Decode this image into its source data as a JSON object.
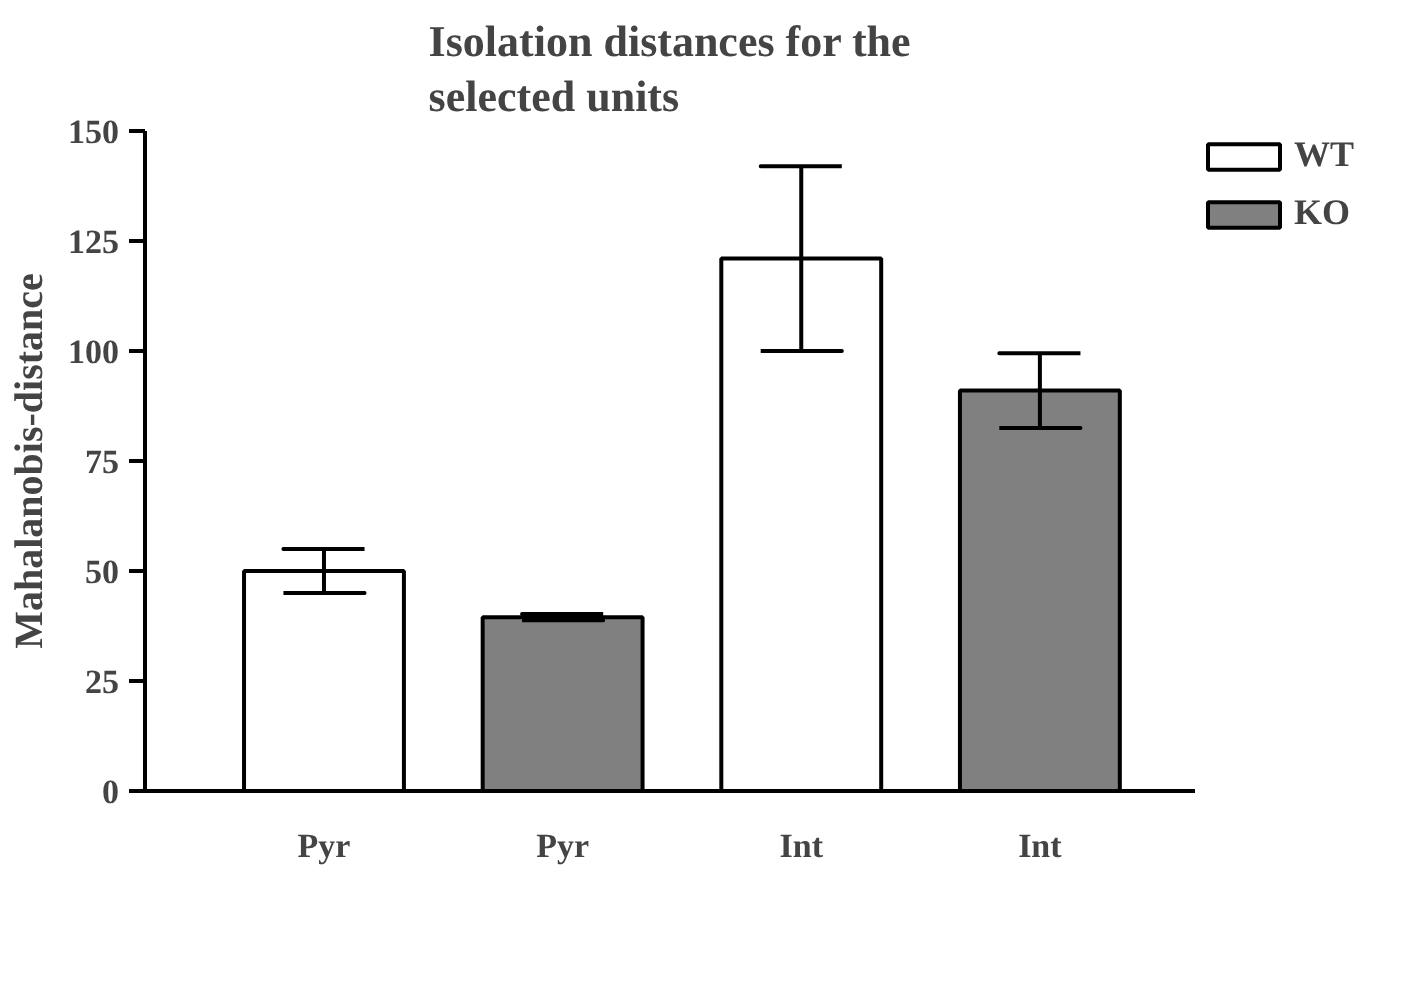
{
  "chart_data": {
    "type": "bar",
    "title": "Isolation distances for the\nselected units",
    "ylabel": "Mahalanobis-distance",
    "categories": [
      "Pyr",
      "Pyr",
      "Int",
      "Int"
    ],
    "series": [
      {
        "name": "WT",
        "color": "#ffffff",
        "values": [
          50,
          null,
          121,
          null
        ],
        "errors": [
          5,
          null,
          21,
          null
        ]
      },
      {
        "name": "KO",
        "color": "#808080",
        "values": [
          null,
          39.5,
          null,
          91
        ],
        "errors": [
          null,
          0.7,
          null,
          8.5
        ]
      }
    ],
    "ylim": [
      0,
      150
    ],
    "yticks": [
      0,
      25,
      50,
      75,
      100,
      125,
      150
    ],
    "grid": false,
    "legend": "top right"
  }
}
